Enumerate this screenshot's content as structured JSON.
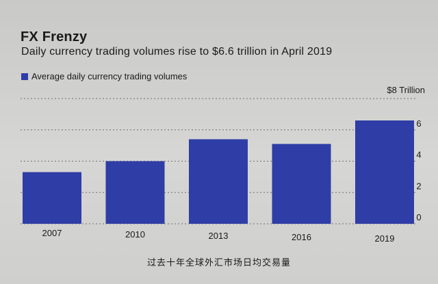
{
  "header": {
    "title": "FX Frenzy",
    "subtitle": "Daily currency trading volumes rise to $6.6 trillion in April 2019"
  },
  "legend": {
    "label": "Average daily currency trading volumes",
    "color": "#2f3da6"
  },
  "caption": "过去十年全球外汇市场日均交易量",
  "chart_data": {
    "type": "bar",
    "title": "FX Frenzy",
    "subtitle": "Daily currency trading volumes rise to $6.6 trillion in April 2019",
    "categories": [
      "2007",
      "2010",
      "2013",
      "2016",
      "2019"
    ],
    "series": [
      {
        "name": "Average daily currency trading volumes",
        "values": [
          3.3,
          4.0,
          5.4,
          5.1,
          6.6
        ],
        "color": "#2f3da6"
      }
    ],
    "ylim": [
      0,
      8
    ],
    "yticks": [
      "0",
      "2",
      "4",
      "6"
    ],
    "top_tick_label": "$8 Trillion",
    "y_axis_side": "right",
    "grid": "dotted horizontal",
    "legend_position": "top-left"
  }
}
